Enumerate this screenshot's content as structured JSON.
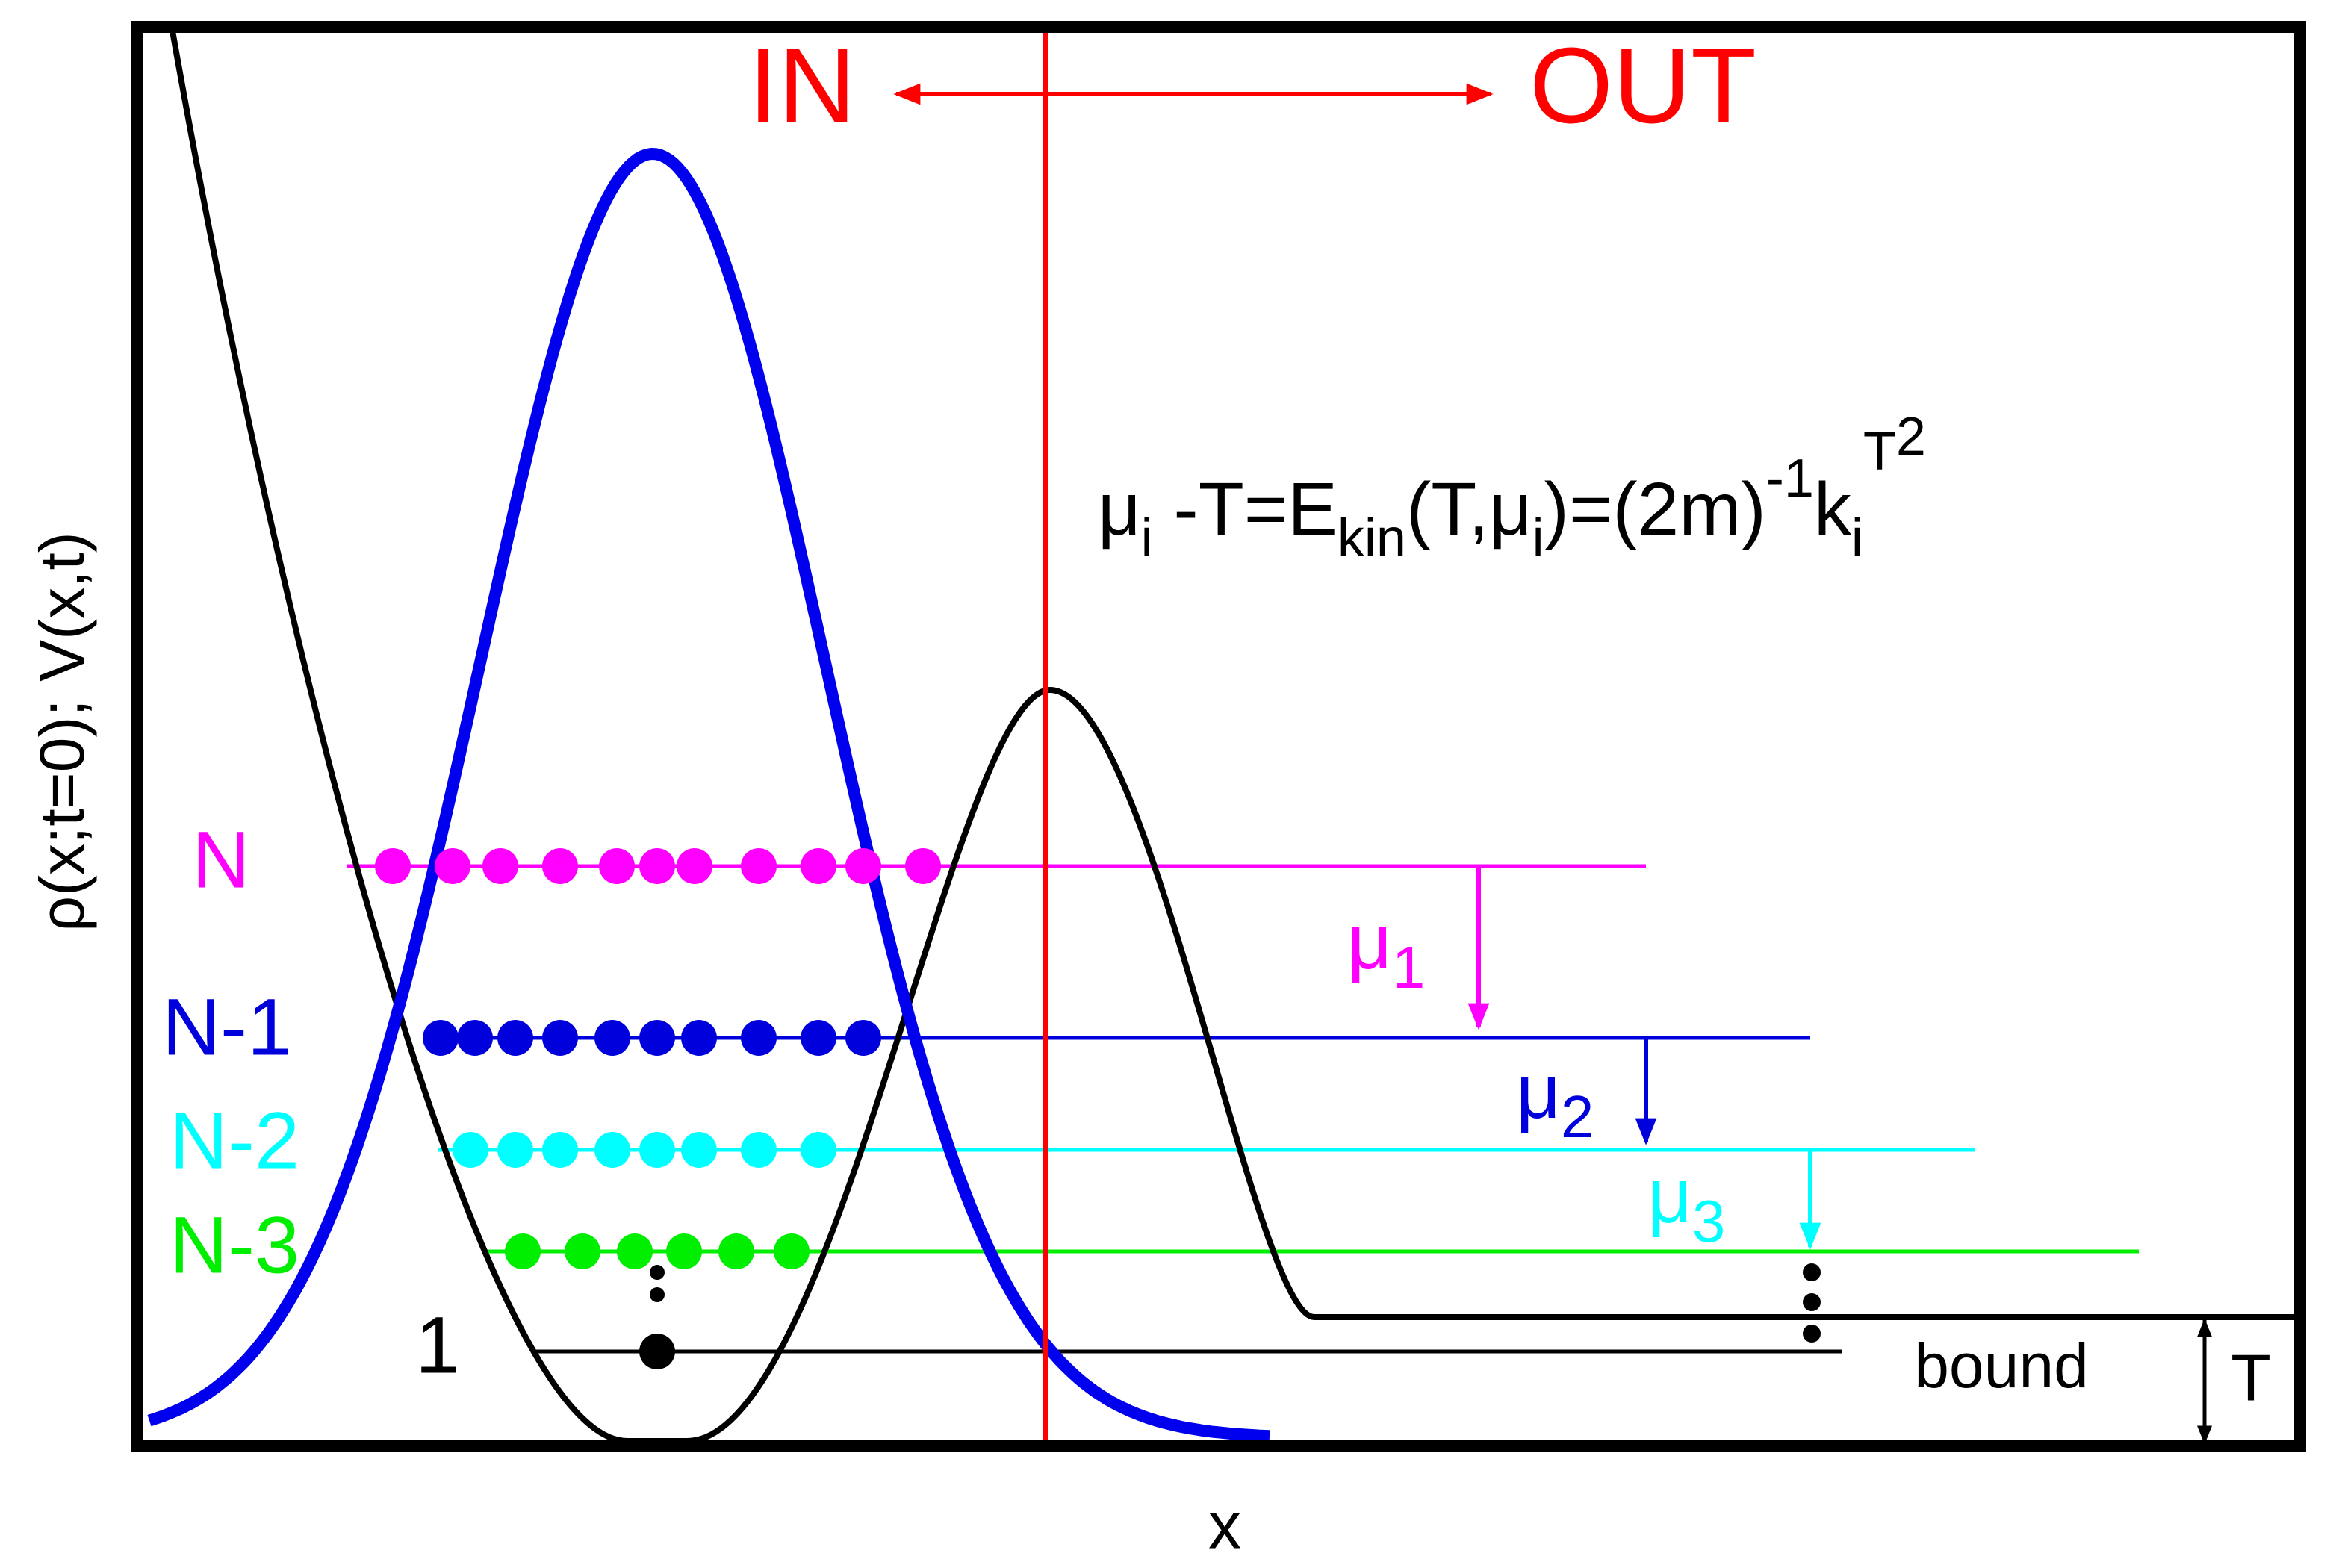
{
  "axes": {
    "y_label": "ρ(x;t=0); V(x,t)",
    "x_label": "x"
  },
  "regions": {
    "inside": "IN",
    "outside": "OUT"
  },
  "formula": [
    "μ",
    "i",
    " -T=E",
    "kin",
    "(T,μ",
    "i",
    ")=(2m)",
    "-1",
    "k",
    "i",
    "T",
    "2"
  ],
  "levels": [
    {
      "label": "N"
    },
    {
      "label": "N-1"
    },
    {
      "label": "N-2"
    },
    {
      "label": "N-3"
    },
    {
      "label": "1"
    }
  ],
  "chemical_potentials": [
    {
      "symbol": "μ",
      "index": "1"
    },
    {
      "symbol": "μ",
      "index": "2"
    },
    {
      "symbol": "μ",
      "index": "3"
    }
  ],
  "bound_label": "bound",
  "temperature_label": "T"
}
